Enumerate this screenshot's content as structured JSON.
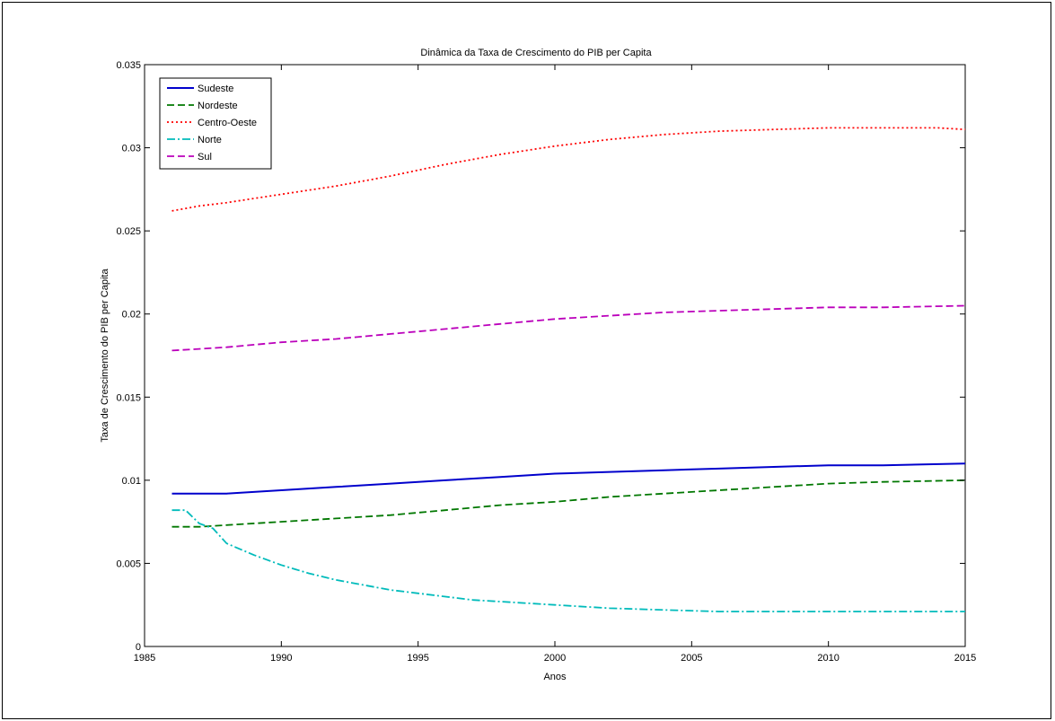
{
  "chart_data": {
    "type": "line",
    "title": "Dinâmica da Taxa de Crescimento do PIB per Capita",
    "xlabel": "Anos",
    "ylabel": "Taxa de Crescimento do PIB per Capita",
    "xlim": [
      1985,
      2015
    ],
    "ylim": [
      0,
      0.035
    ],
    "xticks": [
      1985,
      1990,
      1995,
      2000,
      2005,
      2010,
      2015
    ],
    "yticks": [
      0,
      0.005,
      0.01,
      0.015,
      0.02,
      0.025,
      0.03,
      0.035
    ],
    "xtick_labels": [
      "1985",
      "1990",
      "1995",
      "2000",
      "2005",
      "2010",
      "2015"
    ],
    "ytick_labels": [
      "0",
      "0.005",
      "0.01",
      "0.015",
      "0.02",
      "0.025",
      "0.03",
      "0.035"
    ],
    "grid": false,
    "legend_position": "top-left",
    "series": [
      {
        "name": "Sudeste",
        "color": "#0000cc",
        "style": "solid",
        "x": [
          1986,
          1987,
          1988,
          1990,
          1992,
          1994,
          1996,
          1998,
          2000,
          2002,
          2004,
          2006,
          2008,
          2010,
          2012,
          2015
        ],
        "values": [
          0.0092,
          0.0092,
          0.0092,
          0.0094,
          0.0096,
          0.0098,
          0.01,
          0.0102,
          0.0104,
          0.0105,
          0.0106,
          0.0107,
          0.0108,
          0.0109,
          0.0109,
          0.011
        ]
      },
      {
        "name": "Nordeste",
        "color": "#007700",
        "style": "dashed",
        "x": [
          1986,
          1987,
          1988,
          1990,
          1992,
          1994,
          1996,
          1998,
          2000,
          2002,
          2004,
          2006,
          2008,
          2010,
          2012,
          2015
        ],
        "values": [
          0.0072,
          0.0072,
          0.0073,
          0.0075,
          0.0077,
          0.0079,
          0.0082,
          0.0085,
          0.0087,
          0.009,
          0.0092,
          0.0094,
          0.0096,
          0.0098,
          0.0099,
          0.01
        ]
      },
      {
        "name": "Centro-Oeste",
        "color": "#ff0000",
        "style": "dotted",
        "x": [
          1986,
          1987,
          1988,
          1990,
          1992,
          1994,
          1996,
          1998,
          2000,
          2002,
          2004,
          2006,
          2008,
          2010,
          2012,
          2014,
          2015
        ],
        "values": [
          0.0262,
          0.0265,
          0.0267,
          0.0272,
          0.0277,
          0.0283,
          0.029,
          0.0296,
          0.0301,
          0.0305,
          0.0308,
          0.031,
          0.0311,
          0.0312,
          0.0312,
          0.0312,
          0.0311
        ]
      },
      {
        "name": "Norte",
        "color": "#00bbbb",
        "style": "dashdot",
        "x": [
          1986,
          1986.5,
          1987,
          1987.5,
          1988,
          1989,
          1990,
          1991,
          1992,
          1993,
          1994,
          1995,
          1996,
          1997,
          1998,
          2000,
          2002,
          2004,
          2006,
          2008,
          2010,
          2015
        ],
        "values": [
          0.0082,
          0.0082,
          0.0074,
          0.0071,
          0.0062,
          0.0055,
          0.0049,
          0.0044,
          0.004,
          0.0037,
          0.0034,
          0.0032,
          0.003,
          0.0028,
          0.0027,
          0.0025,
          0.0023,
          0.0022,
          0.0021,
          0.0021,
          0.0021,
          0.0021
        ]
      },
      {
        "name": "Sul",
        "color": "#bb00bb",
        "style": "dashed",
        "x": [
          1986,
          1987,
          1988,
          1990,
          1992,
          1994,
          1996,
          1998,
          2000,
          2002,
          2004,
          2006,
          2008,
          2010,
          2012,
          2015
        ],
        "values": [
          0.0178,
          0.0179,
          0.018,
          0.0183,
          0.0185,
          0.0188,
          0.0191,
          0.0194,
          0.0197,
          0.0199,
          0.0201,
          0.0202,
          0.0203,
          0.0204,
          0.0204,
          0.0205
        ]
      }
    ]
  }
}
